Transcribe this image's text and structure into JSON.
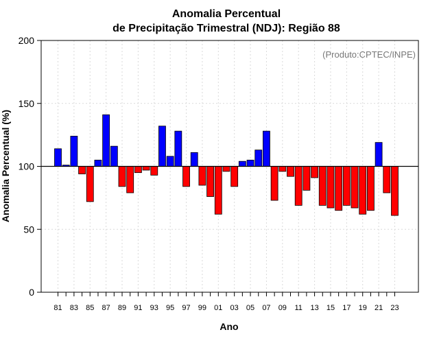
{
  "chart_data": {
    "type": "bar",
    "title_line1": "Anomalia Percentual",
    "title_line2": "de Precipitação Trimestral (NDJ): Região 88",
    "xlabel": "Ano",
    "ylabel": "Anomalia Percentual (%)",
    "annotation": "(Produto:CPTEC/INPE)",
    "baseline": 100,
    "ylim": [
      0,
      200
    ],
    "yticks": [
      "0",
      "50",
      "100",
      "150",
      "200"
    ],
    "xtick_labels": [
      "81",
      "83",
      "85",
      "87",
      "89",
      "91",
      "93",
      "95",
      "97",
      "99",
      "01",
      "03",
      "05",
      "07",
      "09",
      "11",
      "13",
      "15",
      "17",
      "19",
      "21",
      "23"
    ],
    "categories": [
      "81",
      "82",
      "83",
      "84",
      "85",
      "86",
      "87",
      "88",
      "89",
      "90",
      "91",
      "92",
      "93",
      "94",
      "95",
      "96",
      "97",
      "98",
      "99",
      "00",
      "01",
      "02",
      "03",
      "04",
      "05",
      "06",
      "07",
      "08",
      "09",
      "10",
      "11",
      "12",
      "13",
      "14",
      "15",
      "16",
      "17",
      "18",
      "19",
      "20",
      "21",
      "22",
      "23"
    ],
    "values": [
      114,
      101,
      124,
      94,
      72,
      105,
      141,
      116,
      84,
      79,
      95,
      97,
      93,
      132,
      108,
      128,
      84,
      111,
      85,
      76,
      62,
      96,
      84,
      104,
      105,
      113,
      128,
      73,
      96,
      92,
      69,
      81,
      91,
      69,
      67,
      65,
      69,
      67,
      62,
      65,
      119,
      79,
      61
    ],
    "colors": {
      "above": "#0000ff",
      "below": "#ff0000",
      "outline": "#000000",
      "grid": "#d9d9d9",
      "baseline": "#000000",
      "frame": "#000000"
    }
  }
}
